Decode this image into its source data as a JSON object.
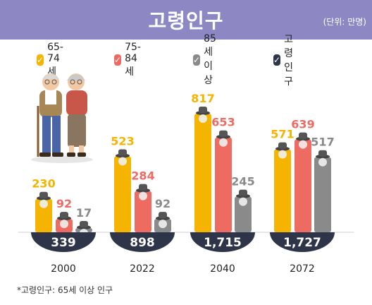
{
  "header": {
    "title": "고령인구",
    "unit": "(단위: 만명)"
  },
  "legend": [
    {
      "label": "65-74세",
      "color": "#f4b400"
    },
    {
      "label": "75-84세",
      "color": "#ee6b62"
    },
    {
      "label": "85세 이상",
      "color": "#8a8a8a"
    },
    {
      "label": "고령인구",
      "color": "#2e3548"
    }
  ],
  "chart_data": {
    "type": "bar",
    "title": "고령인구",
    "categories": [
      "2000",
      "2022",
      "2040",
      "2072"
    ],
    "series": [
      {
        "name": "65-74세",
        "values": [
          230,
          523,
          817,
          571
        ],
        "color": "#f4b400"
      },
      {
        "name": "75-84세",
        "values": [
          92,
          284,
          653,
          639
        ],
        "color": "#ee6b62"
      },
      {
        "name": "85세 이상",
        "values": [
          17,
          92,
          245,
          517
        ],
        "color": "#8a8a8a"
      }
    ],
    "totals": {
      "name": "고령인구",
      "values": [
        "339",
        "898",
        "1,715",
        "1,727"
      ],
      "color": "#2e3548"
    },
    "ylim": [
      0,
      817
    ],
    "legend_position": "top",
    "grid": false
  },
  "footnote": "*고령인구: 65세 이상 인구"
}
